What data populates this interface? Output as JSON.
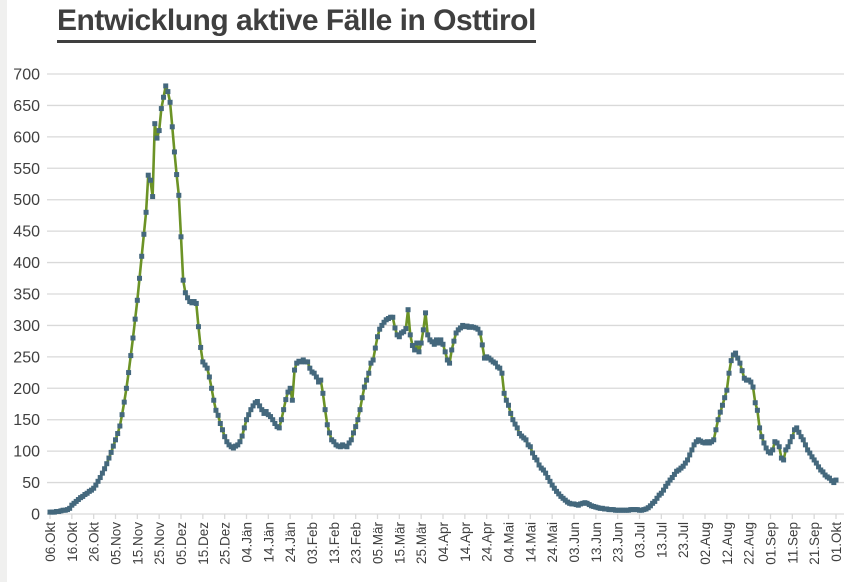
{
  "title": {
    "text": "Entwicklung aktive Fälle in Osttirol"
  },
  "style": {
    "grid_color": "#d9d9d9",
    "axis_text_color": "#404040",
    "title_color": "#3f3f3f",
    "line_color": "#6c9326",
    "marker_color": "#44687d"
  },
  "chart_data": {
    "type": "line",
    "title": "Entwicklung aktive Fälle in Osttirol",
    "xlabel": "",
    "ylabel": "",
    "ylim": [
      0,
      700
    ],
    "y_ticks": [
      0,
      50,
      100,
      150,
      200,
      250,
      300,
      350,
      400,
      450,
      500,
      550,
      600,
      650,
      700
    ],
    "grid": "horizontal",
    "legend": "none",
    "x_tick_interval_days": 10,
    "x_tick_labels": [
      "06.Okt",
      "16.Okt",
      "26.Okt",
      "05.Nov",
      "15.Nov",
      "25.Nov",
      "05.Dez",
      "15.Dez",
      "25.Dez",
      "04.Jän",
      "14.Jän",
      "24.Jän",
      "03.Feb",
      "13.Feb",
      "23.Feb",
      "05.Mär",
      "15.Mär",
      "25.Mär",
      "04.Apr",
      "14.Apr",
      "24.Apr",
      "04.Mai",
      "14.Mai",
      "24.Mai",
      "03.Jun",
      "13.Jun",
      "23.Jun",
      "03.Jul",
      "13.Jul",
      "23.Jul",
      "02.Aug",
      "12.Aug",
      "22.Aug",
      "01.Sep",
      "11.Sep",
      "21.Sep",
      "01.Okt"
    ],
    "series": [
      {
        "marker": "square",
        "marker_color": "#44687d",
        "line_color": "#6c9326",
        "values": [
          3,
          3,
          3,
          4,
          4,
          5,
          6,
          6,
          7,
          9,
          14,
          17,
          20,
          23,
          26,
          28,
          31,
          33,
          36,
          38,
          41,
          46,
          52,
          58,
          65,
          72,
          80,
          89,
          98,
          108,
          118,
          128,
          140,
          158,
          178,
          200,
          225,
          252,
          280,
          310,
          340,
          375,
          410,
          445,
          480,
          539,
          531,
          505,
          621,
          598,
          610,
          645,
          663,
          681,
          672,
          655,
          616,
          576,
          540,
          507,
          441,
          372,
          352,
          344,
          338,
          336,
          338,
          335,
          298,
          265,
          242,
          237,
          232,
          218,
          200,
          181,
          165,
          157,
          144,
          134,
          123,
          115,
          110,
          107,
          105,
          108,
          110,
          115,
          124,
          137,
          150,
          158,
          166,
          172,
          177,
          179,
          172,
          166,
          160,
          163,
          158,
          155,
          150,
          144,
          139,
          137,
          150,
          166,
          182,
          194,
          200,
          181,
          229,
          240,
          243,
          242,
          245,
          242,
          242,
          232,
          226,
          224,
          218,
          210,
          213,
          192,
          166,
          142,
          129,
          118,
          115,
          110,
          108,
          107,
          110,
          108,
          107,
          113,
          118,
          129,
          139,
          150,
          166,
          185,
          202,
          213,
          224,
          240,
          245,
          264,
          282,
          294,
          300,
          305,
          309,
          311,
          313,
          313,
          296,
          285,
          282,
          288,
          290,
          295,
          325,
          285,
          268,
          261,
          272,
          258,
          272,
          293,
          320,
          285,
          277,
          274,
          270,
          277,
          272,
          277,
          270,
          258,
          245,
          240,
          261,
          275,
          288,
          293,
          296,
          300,
          298,
          299,
          297,
          298,
          297,
          296,
          294,
          288,
          269,
          248,
          250,
          248,
          245,
          242,
          240,
          234,
          232,
          224,
          192,
          181,
          173,
          160,
          150,
          143,
          137,
          128,
          124,
          121,
          118,
          110,
          107,
          97,
          90,
          86,
          78,
          73,
          70,
          65,
          58,
          52,
          46,
          41,
          36,
          32,
          28,
          25,
          22,
          19,
          17,
          16,
          16,
          15,
          14,
          16,
          17,
          18,
          17,
          15,
          13,
          12,
          11,
          10,
          9,
          9,
          8,
          8,
          7,
          7,
          7,
          6,
          6,
          6,
          6,
          6,
          6,
          6,
          7,
          7,
          7,
          7,
          6,
          6,
          7,
          8,
          10,
          13,
          17,
          20,
          25,
          30,
          33,
          38,
          44,
          49,
          54,
          58,
          63,
          68,
          70,
          73,
          76,
          81,
          86,
          94,
          102,
          110,
          115,
          118,
          116,
          114,
          113,
          115,
          113,
          115,
          118,
          134,
          150,
          162,
          173,
          185,
          197,
          224,
          244,
          253,
          256,
          248,
          240,
          228,
          216,
          213,
          213,
          210,
          202,
          177,
          165,
          137,
          123,
          113,
          105,
          99,
          97,
          102,
          115,
          113,
          107,
          89,
          86,
          102,
          107,
          115,
          123,
          134,
          137,
          130,
          123,
          118,
          110,
          102,
          97,
          91,
          86,
          81,
          75,
          70,
          67,
          62,
          59,
          57,
          53,
          50,
          54
        ]
      }
    ]
  }
}
